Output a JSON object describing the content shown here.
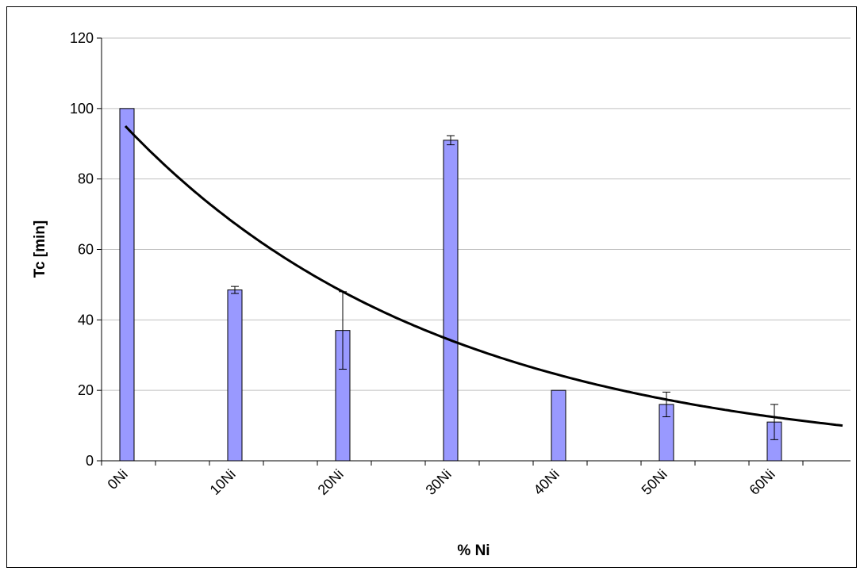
{
  "colors": {
    "bar_fill": "#9999ff",
    "bar_stroke": "#000000",
    "trend_line": "#000000",
    "gridline": "#c0c0c0",
    "axis": "#000000"
  },
  "chart_data": {
    "type": "bar",
    "title": "",
    "xlabel": "% Ni",
    "ylabel": "Tc [min]",
    "ylim": [
      0,
      120
    ],
    "yticks": [
      0,
      20,
      40,
      60,
      80,
      100,
      120
    ],
    "grid": true,
    "legend": "none",
    "categories": [
      "0Ni",
      "10Ni",
      "20Ni",
      "30Ni",
      "40Ni",
      "50Ni",
      "60Ni"
    ],
    "series": [
      {
        "values": [
          100,
          48.5,
          37,
          91,
          20,
          16,
          11
        ],
        "error": [
          0,
          1,
          11,
          1.3,
          0,
          3.5,
          5
        ]
      }
    ],
    "trendline": {
      "type": "exponential",
      "x_start": "0Ni",
      "y_start": 95,
      "y_end": 10
    }
  }
}
